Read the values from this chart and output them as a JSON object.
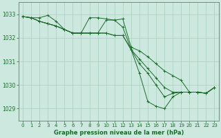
{
  "title": "Graphe pression niveau de la mer (hPa)",
  "background_color": "#cce8df",
  "grid_color": "#aacfbf",
  "line_color": "#1a6b2a",
  "xlim": [
    -0.5,
    23.5
  ],
  "ylim": [
    1028.5,
    1033.5
  ],
  "yticks": [
    1029,
    1030,
    1031,
    1032,
    1033
  ],
  "xticks": [
    0,
    1,
    2,
    3,
    4,
    5,
    6,
    7,
    8,
    9,
    10,
    11,
    12,
    13,
    14,
    15,
    16,
    17,
    18,
    19,
    20,
    21,
    22,
    23
  ],
  "series": [
    [
      1032.9,
      1032.85,
      1032.85,
      1032.95,
      1032.7,
      1032.35,
      1032.2,
      1032.2,
      1032.85,
      1032.85,
      1032.8,
      1032.75,
      1032.8,
      1031.6,
      1031.45,
      1031.2,
      1030.9,
      1030.6,
      1030.4,
      1030.2,
      1029.7,
      1029.7,
      1029.65,
      1029.9
    ],
    [
      1032.9,
      1032.85,
      1032.7,
      1032.6,
      1032.5,
      1032.35,
      1032.2,
      1032.2,
      1032.2,
      1032.2,
      1032.2,
      1032.1,
      1032.1,
      1031.5,
      1031.1,
      1030.7,
      1030.3,
      1029.9,
      1029.7,
      1029.7,
      1029.7,
      1029.7,
      1029.65,
      1029.9
    ],
    [
      1032.9,
      1032.85,
      1032.7,
      1032.6,
      1032.5,
      1032.35,
      1032.2,
      1032.2,
      1032.2,
      1032.2,
      1032.2,
      1032.1,
      1032.1,
      1031.5,
      1030.9,
      1030.5,
      1030.0,
      1029.5,
      1029.65,
      1029.7,
      1029.7,
      1029.7,
      1029.65,
      1029.9
    ],
    [
      1032.9,
      1032.85,
      1032.7,
      1032.6,
      1032.5,
      1032.35,
      1032.2,
      1032.2,
      1032.2,
      1032.2,
      1032.75,
      1032.75,
      1032.45,
      1031.5,
      1030.5,
      1029.3,
      1029.1,
      1029.0,
      1029.5,
      1029.7,
      1029.7,
      1029.7,
      1029.65,
      1029.9
    ]
  ],
  "fig_width": 3.2,
  "fig_height": 2.0,
  "dpi": 100
}
